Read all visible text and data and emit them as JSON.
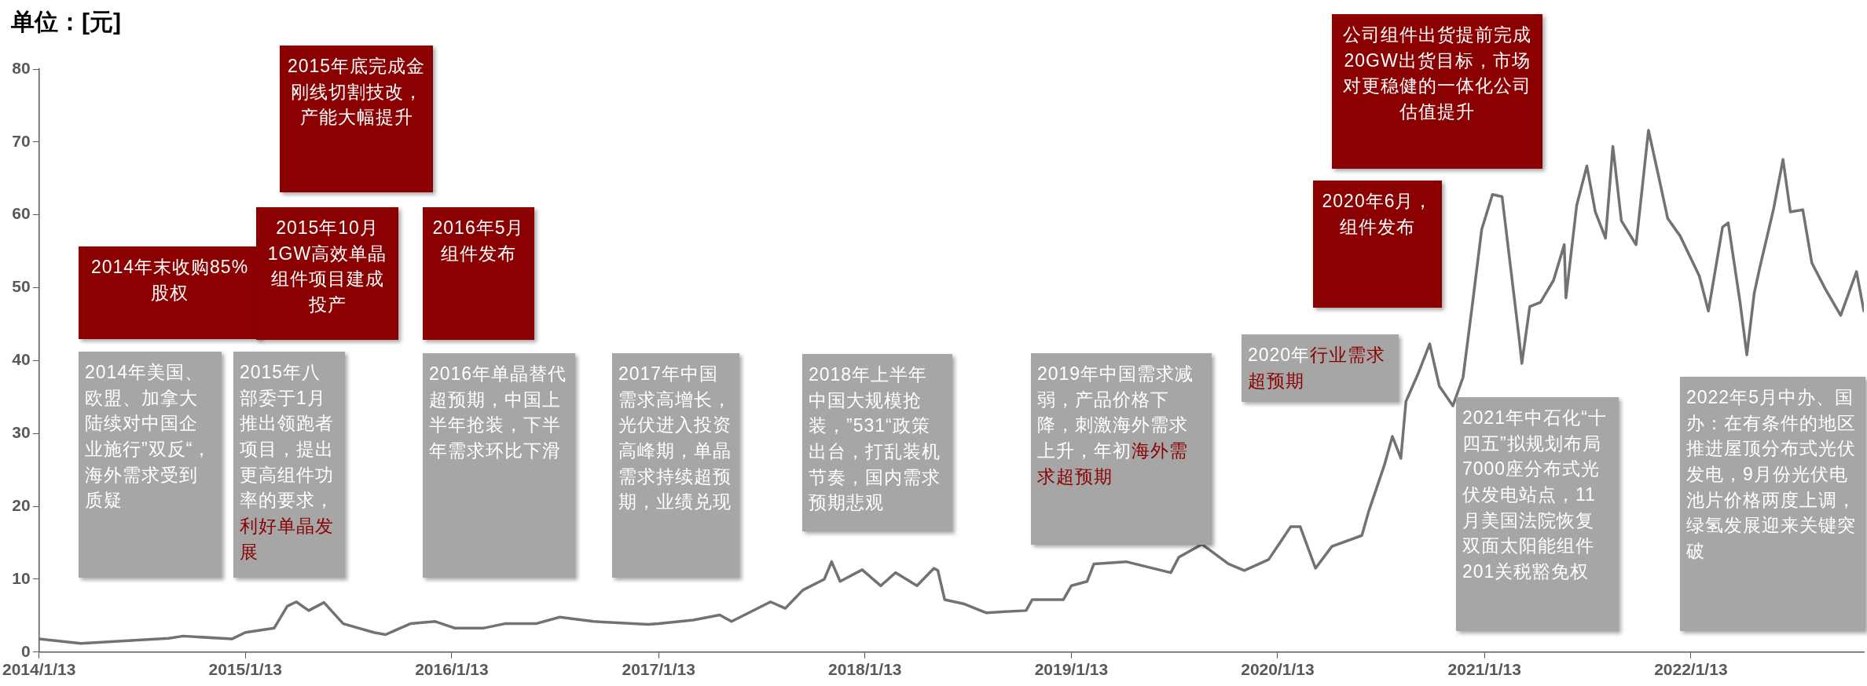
{
  "chart_data": {
    "type": "line",
    "ylabel": "单位：[元]",
    "x": [
      "2014-01-13",
      "2014-03-28",
      "2014-08-30",
      "2014-09-25",
      "2014-12-20",
      "2015-01-13",
      "2015-03-05",
      "2015-03-28",
      "2015-04-13",
      "2015-05-05",
      "2015-06-01",
      "2015-07-05",
      "2015-08-28",
      "2015-09-18",
      "2015-11-01",
      "2015-12-15",
      "2016-01-18",
      "2016-03-10",
      "2016-04-16",
      "2016-06-10",
      "2016-07-22",
      "2016-09-20",
      "2016-11-10",
      "2016-12-25",
      "2017-01-13",
      "2017-03-15",
      "2017-05-01",
      "2017-05-22",
      "2017-07-30",
      "2017-08-25",
      "2017-09-25",
      "2017-11-02",
      "2017-11-15",
      "2017-11-30",
      "2018-01-08",
      "2018-02-10",
      "2018-03-08",
      "2018-04-15",
      "2018-05-15",
      "2018-05-22",
      "2018-06-03",
      "2018-07-08",
      "2018-08-15",
      "2018-10-25",
      "2018-11-05",
      "2018-12-30",
      "2019-01-13",
      "2019-02-10",
      "2019-02-22",
      "2019-04-20",
      "2019-07-08",
      "2019-07-22",
      "2019-09-01",
      "2019-10-18",
      "2019-11-15",
      "2019-12-28",
      "2020-01-18",
      "2020-02-05",
      "2020-02-22",
      "2020-03-20",
      "2020-04-18",
      "2020-06-10",
      "2020-06-22",
      "2020-07-20",
      "2020-08-03",
      "2020-08-18",
      "2020-08-27",
      "2020-09-18",
      "2020-10-08",
      "2020-10-25",
      "2020-11-18",
      "2020-12-06",
      "2020-12-22",
      "2021-01-08",
      "2021-01-27",
      "2021-02-13",
      "2021-03-01",
      "2021-03-15",
      "2021-03-20",
      "2021-04-03",
      "2021-04-22",
      "2021-05-15",
      "2021-06-03",
      "2021-06-06",
      "2021-06-25",
      "2021-07-13",
      "2021-07-28",
      "2021-08-15",
      "2021-08-28",
      "2021-09-12",
      "2021-10-08",
      "2021-10-30",
      "2021-11-18",
      "2021-12-03",
      "2021-12-25",
      "2022-01-28",
      "2022-02-13",
      "2022-03-10",
      "2022-03-20",
      "2022-04-10",
      "2022-04-22",
      "2022-05-05",
      "2022-05-15",
      "2022-06-08",
      "2022-06-25",
      "2022-07-08",
      "2022-07-30",
      "2022-08-15",
      "2022-09-08",
      "2022-10-05",
      "2022-11-02",
      "2022-11-15"
    ],
    "series": [
      {
        "color": "#767171",
        "values": [
          1.8,
          1.2,
          1.9,
          2.2,
          1.8,
          2.7,
          3.3,
          6.3,
          6.9,
          5.7,
          6.8,
          3.9,
          2.7,
          2.4,
          3.9,
          4.2,
          3.3,
          3.3,
          3.9,
          3.9,
          4.8,
          4.2,
          4.0,
          3.8,
          3.9,
          4.4,
          5.1,
          4.2,
          6.9,
          6.0,
          8.5,
          10.0,
          12.4,
          9.7,
          11.3,
          9.1,
          10.9,
          9.1,
          11.5,
          11.2,
          7.2,
          6.6,
          5.4,
          5.7,
          7.2,
          7.2,
          9.1,
          9.7,
          12.1,
          12.4,
          10.9,
          13.0,
          14.8,
          12.1,
          11.2,
          12.7,
          15.1,
          17.2,
          17.2,
          11.5,
          14.5,
          16.0,
          19.3,
          25.7,
          29.6,
          26.6,
          34.4,
          38.3,
          42.3,
          36.5,
          33.8,
          37.7,
          47.4,
          58.0,
          62.8,
          62.5,
          52.2,
          43.2,
          39.6,
          47.4,
          48.0,
          51.0,
          55.9,
          48.6,
          61.3,
          66.7,
          60.4,
          56.8,
          69.4,
          59.2,
          55.9,
          71.6,
          64.9,
          59.5,
          57.1,
          51.6,
          46.8,
          58.3,
          58.9,
          48.0,
          40.8,
          49.2,
          52.8,
          60.7,
          67.6,
          60.4,
          60.7,
          53.4,
          49.8,
          46.2,
          52.2,
          46.8
        ]
      }
    ],
    "xlim": [
      "2014-01-13",
      "2022-11-15"
    ],
    "xticks": [
      {
        "value": "2014-01-13",
        "label": "2014/1/13"
      },
      {
        "value": "2015-01-13",
        "label": "2015/1/13"
      },
      {
        "value": "2016-01-13",
        "label": "2016/1/13"
      },
      {
        "value": "2017-01-13",
        "label": "2017/1/13"
      },
      {
        "value": "2018-01-13",
        "label": "2018/1/13"
      },
      {
        "value": "2019-01-13",
        "label": "2019/1/13"
      },
      {
        "value": "2020-01-13",
        "label": "2020/1/13"
      },
      {
        "value": "2021-01-13",
        "label": "2021/1/13"
      },
      {
        "value": "2022-01-13",
        "label": "2022/1/13"
      }
    ],
    "ylim": [
      0,
      80
    ],
    "yticks": [
      0,
      10,
      20,
      30,
      40,
      50,
      60,
      70,
      80
    ],
    "grid": false,
    "legend": false,
    "line_style": "solid",
    "annotations": [
      "2014年末收购85%股权",
      "2015年底完成金刚线切割技改，产能大幅提升",
      "2015年10月1GW高效单晶组件项目建成投产",
      "2016年5月组件发布",
      "2020年6月，组件发布",
      "公司组件出货提前完成20GW出货目标，市场对更稳健的一体化公司估值提升",
      "2014年美国、欧盟、加拿大陆续对中国企业施行”双反“，海外需求受到质疑",
      "2015年八部委于1月推出领跑者项目，提出更高组件功率的要求，",
      "利好单晶发展",
      "2016年单晶替代超预期，中国上半年抢装，下半年需求环比下滑",
      "2017年中国需求高增长，光伏进入投资高峰期，单晶需求持续超预期，业绩兑现",
      "2018年上半年中国大规模抢装，”531“政策出台，打乱装机节奏，国内需求预期悲观",
      "2019年中国需求减弱，产品价格下降，刺激海外需求上升，年初",
      "海外需求超预期",
      "2020年",
      "行业需求超预期",
      "2021年中石化“十四五”拟规划布局7000座分布式光伏发电站点，11月美国法院恢复双面太阳能组件201关税豁免权",
      "2022年5月中办、国办：在有条件的地区推进屋顶分布式光伏发电，9月份光伏电池片价格两度上调，绿氢发展迎来关键突破"
    ]
  }
}
